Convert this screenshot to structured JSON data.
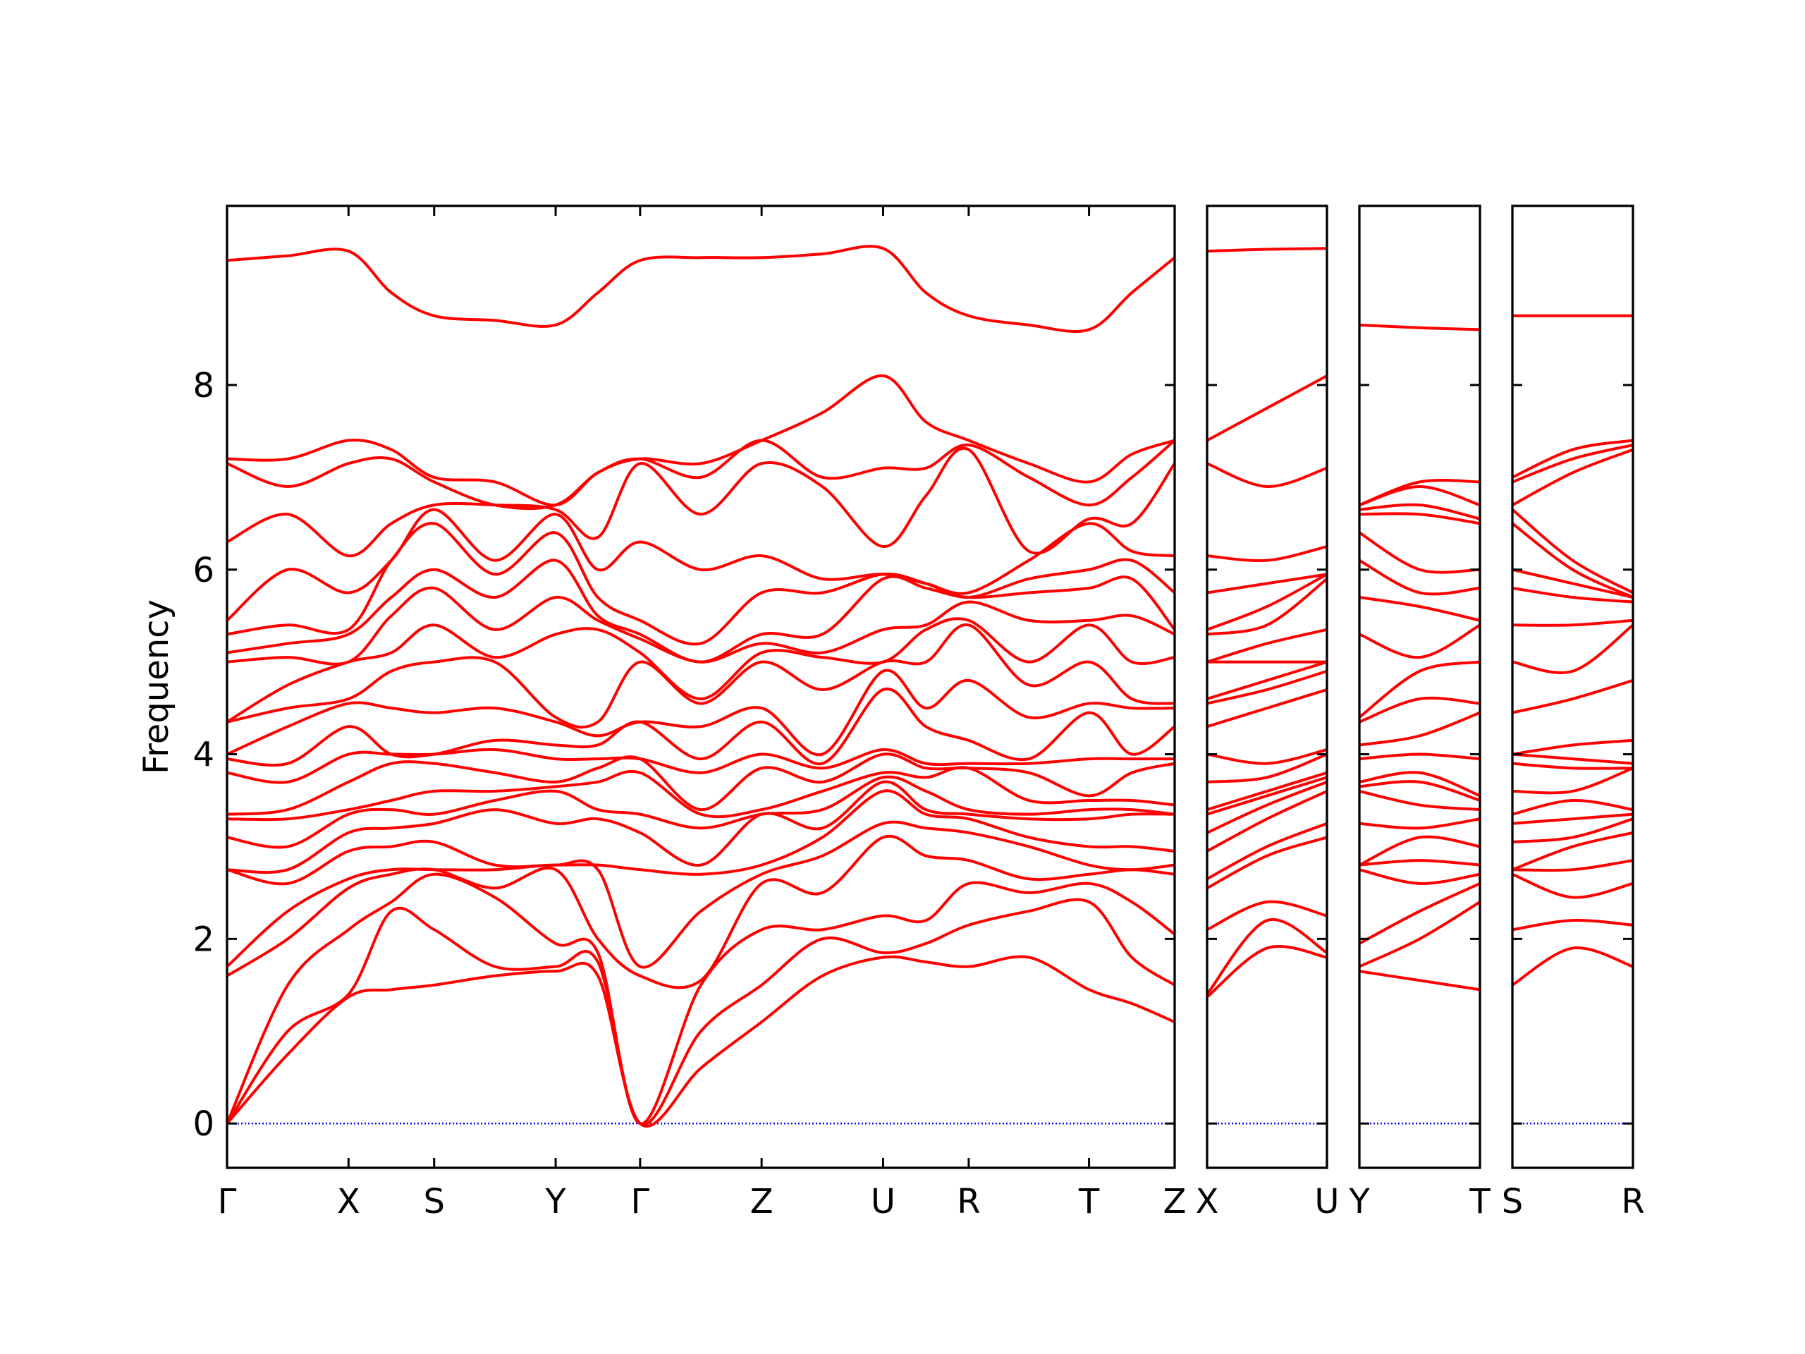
{
  "chart_data": [
    {
      "type": "line",
      "ylabel": "Frequency",
      "color": "#ff0000",
      "ytick_labels": true,
      "zero_line": {
        "value": 0,
        "color": "#0000ff"
      },
      "xlim": [
        0,
        8.19
      ],
      "ylim": [
        -0.48,
        9.94
      ],
      "yticks": [
        0,
        2,
        4,
        6,
        8
      ],
      "xticks": [
        {
          "value": 0,
          "label": "Γ"
        },
        {
          "value": 1.05,
          "label": "X"
        },
        {
          "value": 1.79,
          "label": "S"
        },
        {
          "value": 2.84,
          "label": "Y"
        },
        {
          "value": 3.57,
          "label": "Γ"
        },
        {
          "value": 4.62,
          "label": "Z"
        },
        {
          "value": 5.67,
          "label": "U"
        },
        {
          "value": 6.41,
          "label": "R"
        },
        {
          "value": 7.45,
          "label": "T"
        },
        {
          "value": 8.19,
          "label": "Z"
        }
      ],
      "x": [
        0,
        0.525,
        1.05,
        1.42,
        1.79,
        2.315,
        2.84,
        3.205,
        3.57,
        4.095,
        4.62,
        5.145,
        5.67,
        6.04,
        6.41,
        6.93,
        7.45,
        7.82,
        8.19
      ],
      "series": [
        {
          "values": [
            0,
            0.75,
            1.37,
            1.45,
            1.5,
            1.6,
            1.65,
            1.6,
            0,
            0.6,
            1.1,
            1.6,
            1.8,
            1.75,
            1.7,
            1.8,
            1.45,
            1.3,
            1.1
          ]
        },
        {
          "values": [
            0,
            1.0,
            1.4,
            2.3,
            2.1,
            1.7,
            1.7,
            1.75,
            0,
            1.0,
            1.5,
            2.0,
            1.85,
            1.95,
            2.15,
            2.3,
            2.4,
            1.8,
            1.5
          ]
        },
        {
          "values": [
            0,
            1.5,
            2.1,
            2.4,
            2.7,
            2.45,
            1.95,
            1.85,
            0,
            1.5,
            2.1,
            2.1,
            2.25,
            2.2,
            2.6,
            2.5,
            2.6,
            2.4,
            2.05
          ]
        },
        {
          "values": [
            1.6,
            2.0,
            2.55,
            2.7,
            2.75,
            2.55,
            2.75,
            2.0,
            1.6,
            1.55,
            2.6,
            2.5,
            3.1,
            2.9,
            2.85,
            2.65,
            2.7,
            2.75,
            2.7
          ]
        },
        {
          "values": [
            1.7,
            2.3,
            2.65,
            2.75,
            2.75,
            2.75,
            2.8,
            2.75,
            1.7,
            2.3,
            2.7,
            2.9,
            3.25,
            3.2,
            3.15,
            3.0,
            2.8,
            2.75,
            2.8
          ]
        },
        {
          "values": [
            2.75,
            2.6,
            2.95,
            3.0,
            3.05,
            2.8,
            2.8,
            2.8,
            2.75,
            2.7,
            2.8,
            3.1,
            3.6,
            3.35,
            3.3,
            3.1,
            3.0,
            3.0,
            2.95
          ]
        },
        {
          "values": [
            2.75,
            2.75,
            3.15,
            3.2,
            3.25,
            3.4,
            3.25,
            3.3,
            3.15,
            2.8,
            3.35,
            3.2,
            3.7,
            3.4,
            3.35,
            3.3,
            3.3,
            3.35,
            3.35
          ]
        },
        {
          "values": [
            3.1,
            3.0,
            3.35,
            3.4,
            3.35,
            3.5,
            3.6,
            3.4,
            3.35,
            3.2,
            3.35,
            3.4,
            3.75,
            3.6,
            3.4,
            3.35,
            3.4,
            3.4,
            3.35
          ]
        },
        {
          "values": [
            3.3,
            3.3,
            3.4,
            3.5,
            3.6,
            3.6,
            3.65,
            3.7,
            3.8,
            3.35,
            3.4,
            3.6,
            3.8,
            3.75,
            3.85,
            3.5,
            3.5,
            3.5,
            3.45
          ]
        },
        {
          "values": [
            3.35,
            3.4,
            3.7,
            3.9,
            3.9,
            3.8,
            3.7,
            3.85,
            3.95,
            3.4,
            3.85,
            3.7,
            4.0,
            3.85,
            3.85,
            3.8,
            3.55,
            3.8,
            3.9
          ]
        },
        {
          "values": [
            3.8,
            3.7,
            4.0,
            4.0,
            4.0,
            4.05,
            3.95,
            3.95,
            3.95,
            3.8,
            4.0,
            3.85,
            4.05,
            3.9,
            3.9,
            3.9,
            3.95,
            3.95,
            3.95
          ]
        },
        {
          "values": [
            3.95,
            3.9,
            4.3,
            4.0,
            4.0,
            4.15,
            4.1,
            4.1,
            4.35,
            3.95,
            4.35,
            3.9,
            4.7,
            4.3,
            4.15,
            3.95,
            4.45,
            4.0,
            4.3
          ]
        },
        {
          "values": [
            4.0,
            4.3,
            4.55,
            4.5,
            4.45,
            4.5,
            4.35,
            4.2,
            4.35,
            4.3,
            4.5,
            4.0,
            4.9,
            4.5,
            4.8,
            4.4,
            4.55,
            4.5,
            4.5
          ]
        },
        {
          "values": [
            4.35,
            4.5,
            4.6,
            4.9,
            5.0,
            5.0,
            4.4,
            4.35,
            5.0,
            4.55,
            5.0,
            4.7,
            5.0,
            5.0,
            5.4,
            4.75,
            5.0,
            4.6,
            4.55
          ]
        },
        {
          "values": [
            4.35,
            4.75,
            5.0,
            5.1,
            5.4,
            5.05,
            5.3,
            5.35,
            5.1,
            4.6,
            5.1,
            5.05,
            5.0,
            5.35,
            5.45,
            5.0,
            5.4,
            5.0,
            5.05
          ]
        },
        {
          "values": [
            5.0,
            5.05,
            5.0,
            5.5,
            5.8,
            5.35,
            5.7,
            5.45,
            5.25,
            5.0,
            5.2,
            5.1,
            5.35,
            5.4,
            5.65,
            5.45,
            5.45,
            5.5,
            5.3
          ]
        },
        {
          "values": [
            5.1,
            5.2,
            5.3,
            5.7,
            6.0,
            5.7,
            6.1,
            5.5,
            5.3,
            5.0,
            5.3,
            5.3,
            5.9,
            5.8,
            5.7,
            5.75,
            5.8,
            5.9,
            5.35
          ]
        },
        {
          "values": [
            5.3,
            5.4,
            5.35,
            6.1,
            6.5,
            5.95,
            6.4,
            5.7,
            5.45,
            5.2,
            5.75,
            5.75,
            5.95,
            5.85,
            5.7,
            5.9,
            6.0,
            6.1,
            5.75
          ]
        },
        {
          "values": [
            5.45,
            6.0,
            5.75,
            6.1,
            6.65,
            6.1,
            6.6,
            6.0,
            6.3,
            6.0,
            6.15,
            5.9,
            5.95,
            5.85,
            5.75,
            6.1,
            6.5,
            6.2,
            6.15
          ]
        },
        {
          "values": [
            6.3,
            6.6,
            6.15,
            6.5,
            6.7,
            6.7,
            6.65,
            6.35,
            7.15,
            6.6,
            7.15,
            6.9,
            6.25,
            6.8,
            7.3,
            6.2,
            6.55,
            6.5,
            7.15
          ]
        },
        {
          "values": [
            7.15,
            6.9,
            7.15,
            7.2,
            6.95,
            6.7,
            6.7,
            7.05,
            7.2,
            7.0,
            7.4,
            7.0,
            7.1,
            7.1,
            7.35,
            7.0,
            6.7,
            7.0,
            7.4
          ]
        },
        {
          "values": [
            7.2,
            7.2,
            7.4,
            7.3,
            7.0,
            6.95,
            6.7,
            7.05,
            7.2,
            7.15,
            7.4,
            7.7,
            8.1,
            7.6,
            7.4,
            7.15,
            6.95,
            7.25,
            7.4
          ]
        },
        {
          "values": [
            9.35,
            9.4,
            9.45,
            9.0,
            8.75,
            8.7,
            8.65,
            9.0,
            9.35,
            9.38,
            9.38,
            9.42,
            9.48,
            9.0,
            8.75,
            8.65,
            8.6,
            9.0,
            9.38
          ]
        }
      ]
    },
    {
      "type": "line",
      "color": "#ff0000",
      "ytick_labels": false,
      "zero_line": {
        "value": 0,
        "color": "#0000ff"
      },
      "xlim": [
        0,
        1.04
      ],
      "ylim": [
        -0.48,
        9.94
      ],
      "yticks": [
        0,
        2,
        4,
        6,
        8
      ],
      "xticks": [
        {
          "value": 0,
          "label": "X"
        },
        {
          "value": 1.04,
          "label": "U"
        }
      ],
      "x": [
        0,
        0.52,
        1.04
      ],
      "series": [
        {
          "values": [
            1.37,
            1.9,
            1.8
          ]
        },
        {
          "values": [
            1.4,
            2.2,
            1.85
          ]
        },
        {
          "values": [
            2.1,
            2.4,
            2.25
          ]
        },
        {
          "values": [
            2.55,
            2.9,
            3.1
          ]
        },
        {
          "values": [
            2.65,
            3.0,
            3.25
          ]
        },
        {
          "values": [
            2.95,
            3.3,
            3.6
          ]
        },
        {
          "values": [
            3.15,
            3.45,
            3.7
          ]
        },
        {
          "values": [
            3.35,
            3.55,
            3.75
          ]
        },
        {
          "values": [
            3.4,
            3.6,
            3.8
          ]
        },
        {
          "values": [
            3.7,
            3.75,
            4.0
          ]
        },
        {
          "values": [
            4.0,
            3.9,
            4.05
          ]
        },
        {
          "values": [
            4.3,
            4.5,
            4.7
          ]
        },
        {
          "values": [
            4.55,
            4.7,
            4.9
          ]
        },
        {
          "values": [
            4.6,
            4.8,
            5.0
          ]
        },
        {
          "values": [
            5.0,
            5.0,
            5.0
          ]
        },
        {
          "values": [
            5.0,
            5.2,
            5.35
          ]
        },
        {
          "values": [
            5.3,
            5.4,
            5.9
          ]
        },
        {
          "values": [
            5.35,
            5.6,
            5.95
          ]
        },
        {
          "values": [
            5.75,
            5.85,
            5.95
          ]
        },
        {
          "values": [
            6.15,
            6.1,
            6.25
          ]
        },
        {
          "values": [
            7.15,
            6.9,
            7.1
          ]
        },
        {
          "values": [
            7.4,
            7.75,
            8.1
          ]
        },
        {
          "values": [
            9.45,
            9.47,
            9.48
          ]
        }
      ]
    },
    {
      "type": "line",
      "color": "#ff0000",
      "ytick_labels": false,
      "zero_line": {
        "value": 0,
        "color": "#0000ff"
      },
      "xlim": [
        0,
        1.04
      ],
      "ylim": [
        -0.48,
        9.94
      ],
      "yticks": [
        0,
        2,
        4,
        6,
        8
      ],
      "xticks": [
        {
          "value": 0,
          "label": "Y"
        },
        {
          "value": 1.04,
          "label": "T"
        }
      ],
      "x": [
        0,
        0.52,
        1.04
      ],
      "series": [
        {
          "values": [
            1.65,
            1.55,
            1.45
          ]
        },
        {
          "values": [
            1.7,
            2.0,
            2.4
          ]
        },
        {
          "values": [
            1.95,
            2.3,
            2.6
          ]
        },
        {
          "values": [
            2.75,
            2.6,
            2.7
          ]
        },
        {
          "values": [
            2.8,
            2.85,
            2.8
          ]
        },
        {
          "values": [
            2.8,
            3.1,
            3.0
          ]
        },
        {
          "values": [
            3.25,
            3.2,
            3.3
          ]
        },
        {
          "values": [
            3.6,
            3.45,
            3.4
          ]
        },
        {
          "values": [
            3.65,
            3.7,
            3.5
          ]
        },
        {
          "values": [
            3.7,
            3.8,
            3.55
          ]
        },
        {
          "values": [
            3.95,
            4.0,
            3.95
          ]
        },
        {
          "values": [
            4.1,
            4.2,
            4.45
          ]
        },
        {
          "values": [
            4.35,
            4.6,
            4.55
          ]
        },
        {
          "values": [
            4.4,
            4.9,
            5.0
          ]
        },
        {
          "values": [
            5.3,
            5.05,
            5.4
          ]
        },
        {
          "values": [
            5.7,
            5.6,
            5.45
          ]
        },
        {
          "values": [
            6.1,
            5.75,
            5.8
          ]
        },
        {
          "values": [
            6.4,
            6.0,
            6.0
          ]
        },
        {
          "values": [
            6.6,
            6.6,
            6.5
          ]
        },
        {
          "values": [
            6.65,
            6.7,
            6.55
          ]
        },
        {
          "values": [
            6.7,
            6.9,
            6.7
          ]
        },
        {
          "values": [
            6.7,
            6.95,
            6.95
          ]
        },
        {
          "values": [
            8.65,
            8.62,
            8.6
          ]
        }
      ]
    },
    {
      "type": "line",
      "color": "#ff0000",
      "ytick_labels": false,
      "zero_line": {
        "value": 0,
        "color": "#0000ff"
      },
      "xlim": [
        0,
        1.04
      ],
      "ylim": [
        -0.48,
        9.94
      ],
      "yticks": [
        0,
        2,
        4,
        6,
        8
      ],
      "xticks": [
        {
          "value": 0,
          "label": "S"
        },
        {
          "value": 1.04,
          "label": "R"
        }
      ],
      "x": [
        0,
        0.52,
        1.04
      ],
      "series": [
        {
          "values": [
            1.5,
            1.9,
            1.7
          ]
        },
        {
          "values": [
            2.1,
            2.2,
            2.15
          ]
        },
        {
          "values": [
            2.7,
            2.45,
            2.6
          ]
        },
        {
          "values": [
            2.75,
            2.75,
            2.85
          ]
        },
        {
          "values": [
            2.75,
            3.0,
            3.15
          ]
        },
        {
          "values": [
            3.05,
            3.1,
            3.3
          ]
        },
        {
          "values": [
            3.25,
            3.3,
            3.35
          ]
        },
        {
          "values": [
            3.35,
            3.5,
            3.4
          ]
        },
        {
          "values": [
            3.6,
            3.6,
            3.85
          ]
        },
        {
          "values": [
            3.9,
            3.85,
            3.85
          ]
        },
        {
          "values": [
            4.0,
            3.95,
            3.9
          ]
        },
        {
          "values": [
            4.0,
            4.1,
            4.15
          ]
        },
        {
          "values": [
            4.45,
            4.6,
            4.8
          ]
        },
        {
          "values": [
            5.0,
            4.9,
            5.4
          ]
        },
        {
          "values": [
            5.4,
            5.4,
            5.45
          ]
        },
        {
          "values": [
            5.8,
            5.7,
            5.65
          ]
        },
        {
          "values": [
            6.0,
            5.85,
            5.7
          ]
        },
        {
          "values": [
            6.5,
            6.0,
            5.7
          ]
        },
        {
          "values": [
            6.65,
            6.1,
            5.75
          ]
        },
        {
          "values": [
            6.7,
            7.05,
            7.3
          ]
        },
        {
          "values": [
            6.95,
            7.2,
            7.35
          ]
        },
        {
          "values": [
            7.0,
            7.3,
            7.4
          ]
        },
        {
          "values": [
            8.75,
            8.75,
            8.75
          ]
        }
      ]
    }
  ]
}
